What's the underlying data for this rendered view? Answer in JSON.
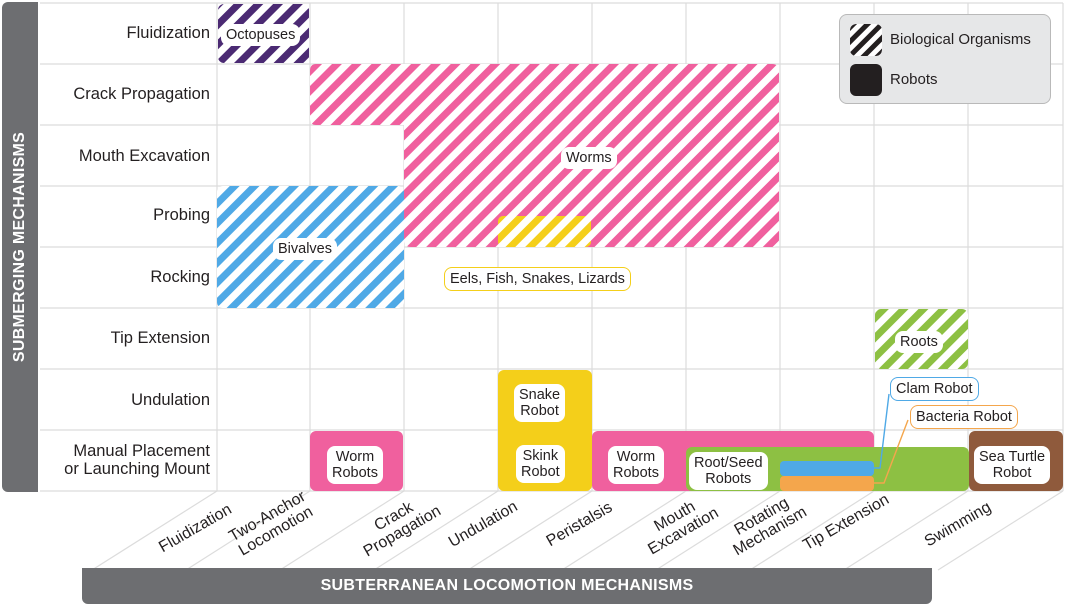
{
  "y_axis": {
    "title": "SUBMERGING MECHANISMS",
    "rows": [
      {
        "label": [
          "Fluidization"
        ]
      },
      {
        "label": [
          "Crack Propagation"
        ]
      },
      {
        "label": [
          "Mouth Excavation"
        ]
      },
      {
        "label": [
          "Probing"
        ]
      },
      {
        "label": [
          "Rocking"
        ]
      },
      {
        "label": [
          "Tip Extension"
        ]
      },
      {
        "label": [
          "Undulation"
        ]
      },
      {
        "label": [
          "Manual Placement",
          "or Launching Mount"
        ]
      }
    ]
  },
  "x_axis": {
    "title": "SUBTERRANEAN LOCOMOTION MECHANISMS",
    "columns": [
      {
        "label": [
          "Fluidization"
        ]
      },
      {
        "label": [
          "Two-Anchor",
          "Locomotion"
        ]
      },
      {
        "label": [
          "Crack",
          "Propagation"
        ]
      },
      {
        "label": [
          "Undulation"
        ]
      },
      {
        "label": [
          "Peristalsis"
        ]
      },
      {
        "label": [
          "Mouth",
          "Excavation"
        ]
      },
      {
        "label": [
          "Rotating",
          "Mechanism"
        ]
      },
      {
        "label": [
          "Tip Extension"
        ]
      },
      {
        "label": [
          "Swimming"
        ]
      }
    ]
  },
  "legend": {
    "biological": "Biological Organisms",
    "robots": "Robots"
  },
  "colors": {
    "octopus": "#4b2a73",
    "worms": "#f0609e",
    "bivalves": "#4fa9e6",
    "eels": "#f4cf1a",
    "roots": "#8dc043",
    "snake_robot": "#f4cf1a",
    "worm_robots": "#f0609e",
    "root_seed": "#8dc043",
    "clam": "#4fa9e6",
    "bacteria": "#f4a64c",
    "sea_turtle": "#8f5a3c",
    "axis_bar": "#6d6e71"
  },
  "organisms": {
    "octopuses": "Octopuses",
    "worms": "Worms",
    "bivalves": "Bivalves",
    "eels": "Eels, Fish, Snakes, Lizards",
    "roots": "Roots"
  },
  "robots": {
    "worm_robots_1": [
      "Worm",
      "Robots"
    ],
    "snake_robot": [
      "Snake",
      "Robot"
    ],
    "skink_robot": [
      "Skink",
      "Robot"
    ],
    "worm_robots_2": [
      "Worm",
      "Robots"
    ],
    "root_seed": [
      "Root/Seed",
      "Robots"
    ],
    "clam_robot": "Clam Robot",
    "bacteria_robot": "Bacteria Robot",
    "sea_turtle": [
      "Sea Turtle",
      "Robot"
    ]
  }
}
